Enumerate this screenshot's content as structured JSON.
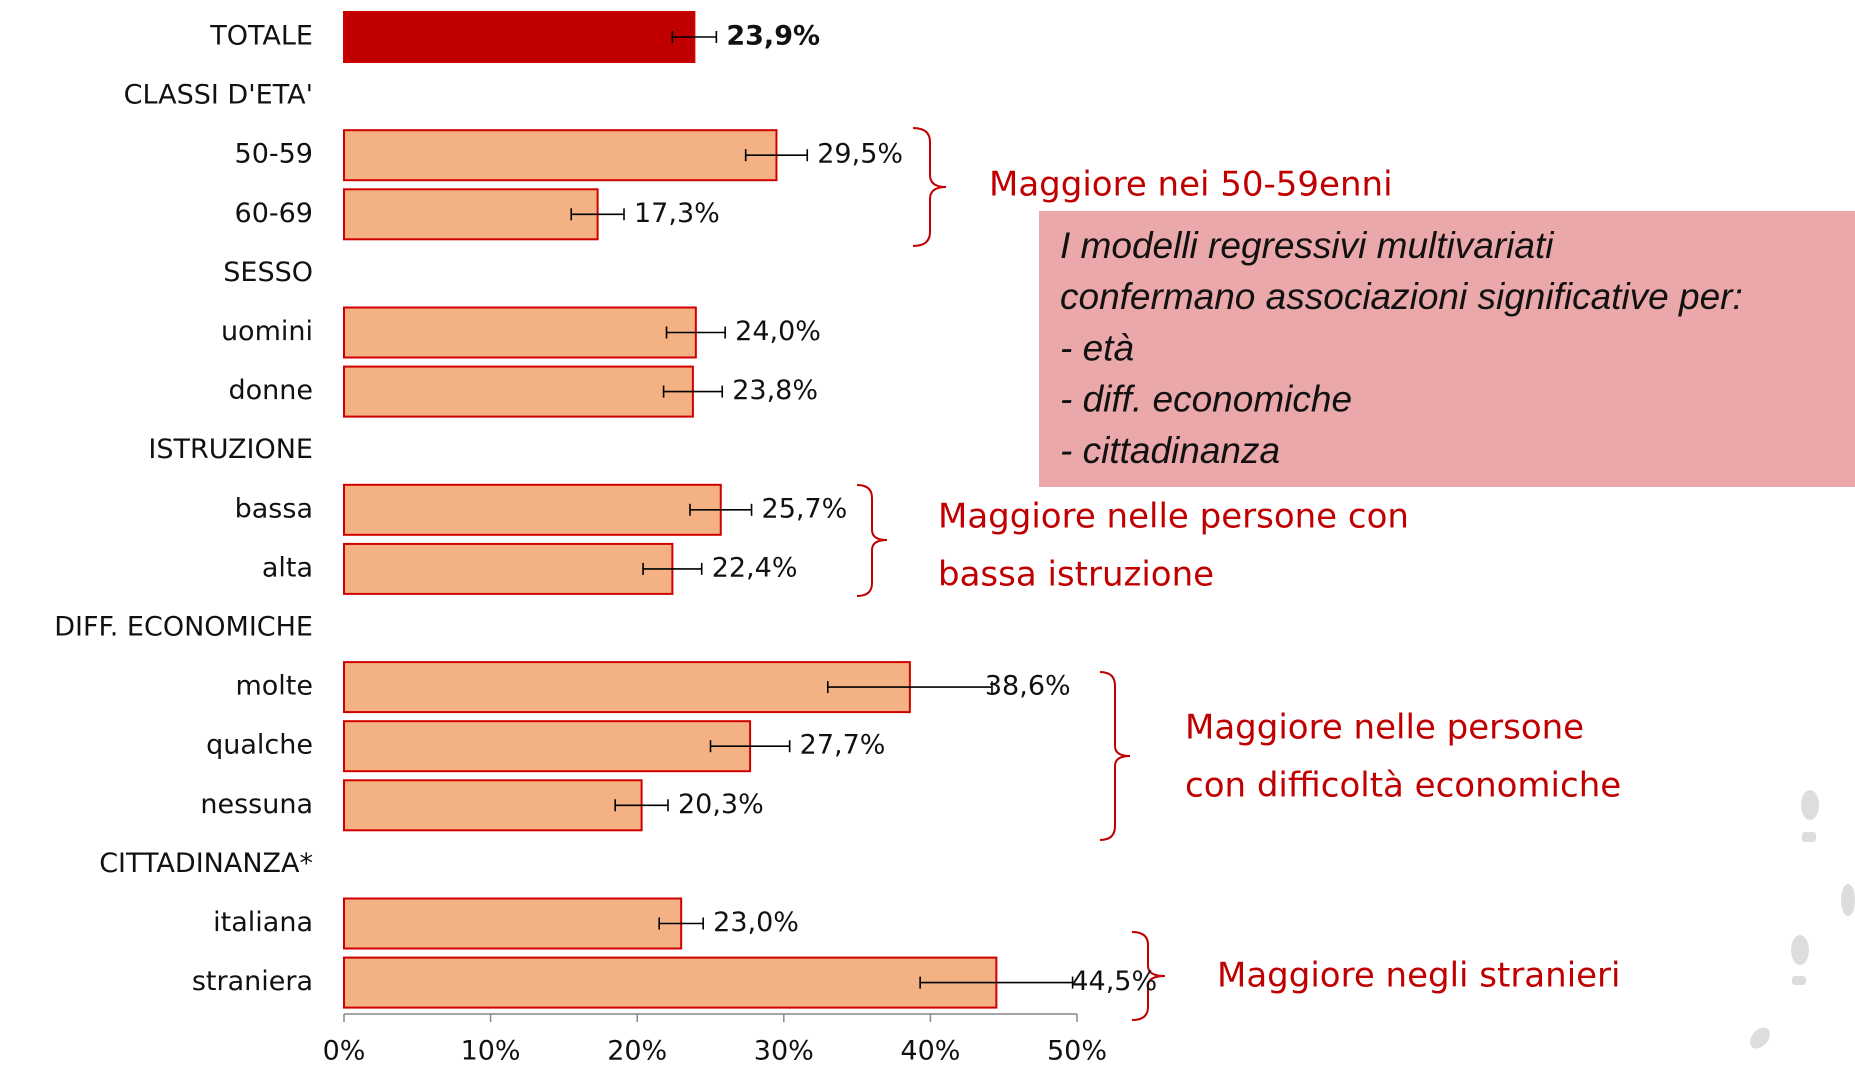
{
  "chart_data": {
    "type": "bar",
    "orientation": "horizontal",
    "categories": [
      "TOTALE",
      "CLASSI D'ETA'",
      "50-59",
      "60-69",
      "SESSO",
      "uomini",
      "donne",
      "ISTRUZIONE",
      "bassa",
      "alta",
      "DIFF. ECONOMICHE",
      "molte",
      "qualche",
      "nessuna",
      "CITTADINANZA*",
      "italiana",
      "straniera"
    ],
    "values": [
      23.9,
      null,
      29.5,
      17.3,
      null,
      24.0,
      23.8,
      null,
      25.7,
      22.4,
      null,
      38.6,
      27.7,
      20.3,
      null,
      23.0,
      44.5
    ],
    "value_labels": [
      "23,9%",
      null,
      "29,5%",
      "17,3%",
      null,
      "24,0%",
      "23,8%",
      null,
      "25,7%",
      "22,4%",
      null,
      "38,6%",
      "27,7%",
      "20,3%",
      null,
      "23,0%",
      "44,5%"
    ],
    "errors": [
      1.5,
      null,
      2.1,
      1.8,
      null,
      2.0,
      2.0,
      null,
      2.1,
      2.0,
      null,
      5.6,
      2.7,
      1.8,
      null,
      1.5,
      5.2
    ],
    "colors": [
      "#c00000",
      null,
      "#f4b183",
      "#f4b183",
      null,
      "#f4b183",
      "#f4b183",
      null,
      "#f4b183",
      "#f4b183",
      null,
      "#f4b183",
      "#f4b183",
      "#f4b183",
      null,
      "#f4b183",
      "#f4b183"
    ],
    "xlim": [
      0,
      50
    ],
    "xticks": [
      {
        "value": 0,
        "label": "0%"
      },
      {
        "value": 10,
        "label": "10%"
      },
      {
        "value": 20,
        "label": "20%"
      },
      {
        "value": 30,
        "label": "30%"
      },
      {
        "value": 40,
        "label": "40%"
      },
      {
        "value": 50,
        "label": "50%"
      }
    ],
    "annotations": [
      {
        "lines": [
          "Maggiore nei 50-59enni"
        ]
      },
      {
        "lines": [
          "Maggiore nelle persone con",
          "bassa istruzione"
        ]
      },
      {
        "lines": [
          "Maggiore nelle persone",
          "con difficoltà economiche"
        ]
      },
      {
        "lines": [
          "Maggiore negli stranieri"
        ]
      }
    ],
    "note_box": {
      "lines": [
        "I modelli regressivi multivariati",
        "confermano associazioni significative per:",
        "- età",
        "- diff. economiche",
        "- cittadinanza"
      ]
    }
  }
}
